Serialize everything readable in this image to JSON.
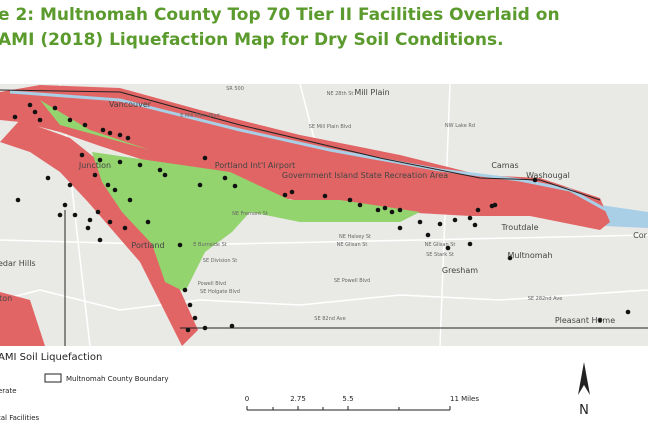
{
  "title": [
    "e 2: Multnomah County Top 70 Tier II Facilities Overlaid on",
    "AMI (2018) Liquefaction Map for Dry Soil Conditions."
  ],
  "map": {
    "places": [
      "Vancouver",
      "Mill Plain",
      "Camas",
      "Washougal",
      "Portland",
      "Gresham",
      "Cedar Hills",
      "Troutdale",
      "Pleasant Home",
      "Multnomah",
      "Cor",
      "Junction",
      "Portland Int'l Airport",
      "Government Island State Recreation Area",
      "rton"
    ],
    "streets": [
      "SR 500",
      "NE 28th St",
      "E Mill Plain Blvd",
      "SE Mill Plain Blvd",
      "NW Lake Rd",
      "NE Fremont St",
      "E Burnside St",
      "NE Glisan St",
      "NE Halsey St",
      "NE Glisan St",
      "SE Stark St",
      "SE Division St",
      "Powell Blvd",
      "SE Powell Blvd",
      "SE Holgate Blvd",
      "SE 82nd Ave",
      "SE 282nd Ave"
    ]
  },
  "legend": {
    "title": "AMI Soil Liquefaction",
    "boundary": "Multnomah County Boundary",
    "moderate": "erate",
    "facilities": "tal Facilities"
  },
  "scale": {
    "labels": [
      "0",
      "2.75",
      "5.5",
      "11 Miles"
    ]
  },
  "north": "N"
}
